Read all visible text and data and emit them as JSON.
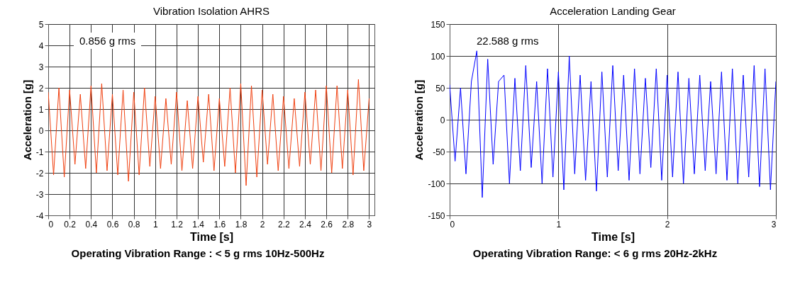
{
  "chart_data": [
    {
      "type": "line",
      "title": "Vibration Isolation  AHRS",
      "xlabel": "Time [s]",
      "ylabel": "Acceleration [g]",
      "annotations": [
        "0.856 g rms",
        "Operating Vibration Range : < 5 g rms  10Hz-500Hz"
      ],
      "x": [
        0,
        0.05,
        0.1,
        0.15,
        0.2,
        0.25,
        0.3,
        0.35,
        0.4,
        0.45,
        0.5,
        0.55,
        0.6,
        0.65,
        0.7,
        0.75,
        0.8,
        0.85,
        0.9,
        0.95,
        1,
        1.05,
        1.1,
        1.15,
        1.2,
        1.25,
        1.3,
        1.35,
        1.4,
        1.45,
        1.5,
        1.55,
        1.6,
        1.65,
        1.7,
        1.75,
        1.8,
        1.85,
        1.9,
        1.95,
        2,
        2.05,
        2.1,
        2.15,
        2.2,
        2.25,
        2.3,
        2.35,
        2.4,
        2.45,
        2.5,
        2.55,
        2.6,
        2.65,
        2.7,
        2.75,
        2.8,
        2.85,
        2.9,
        2.95,
        3
      ],
      "series": [
        {
          "color": "#f04010",
          "values": [
            1.8,
            -2.1,
            2.0,
            -2.2,
            1.9,
            -1.6,
            1.7,
            -1.8,
            2.1,
            -2.0,
            2.2,
            -1.9,
            1.7,
            -2.1,
            1.9,
            -2.4,
            1.8,
            -2.1,
            2.0,
            -1.7,
            1.6,
            -1.8,
            1.5,
            -1.6,
            1.8,
            -1.9,
            1.4,
            -1.8,
            1.6,
            -1.5,
            1.7,
            -1.9,
            1.5,
            -1.7,
            2.0,
            -2.0,
            2.2,
            -2.6,
            2.1,
            -2.2,
            1.9,
            -1.6,
            1.7,
            -1.9,
            1.6,
            -1.8,
            1.5,
            -1.7,
            1.8,
            -1.6,
            1.9,
            -1.9,
            2.1,
            -2.0,
            2.1,
            -1.8,
            1.9,
            -2.1,
            2.4,
            -1.9,
            1.5
          ]
        }
      ],
      "xlim": [
        0,
        3.05
      ],
      "xticks": [
        0,
        0.2,
        0.4,
        0.6,
        0.8,
        1,
        1.2,
        1.4,
        1.6,
        1.8,
        2,
        2.2,
        2.4,
        2.6,
        2.8,
        3
      ],
      "ylim": [
        -4,
        5
      ],
      "yticks": [
        -4,
        -3,
        -2,
        -1,
        0,
        1,
        2,
        3,
        4,
        5
      ],
      "grid": true
    },
    {
      "type": "line",
      "title": "Acceleration Landing Gear",
      "xlabel": "Time [s]",
      "ylabel": "Acceleration [g]",
      "annotations": [
        "22.588 g rms",
        "Operating Vibration Range: < 6 g rms  20Hz-2kHz"
      ],
      "x": [
        0,
        0.05,
        0.1,
        0.15,
        0.2,
        0.25,
        0.3,
        0.35,
        0.4,
        0.45,
        0.5,
        0.55,
        0.6,
        0.65,
        0.7,
        0.75,
        0.8,
        0.85,
        0.9,
        0.95,
        1,
        1.05,
        1.1,
        1.15,
        1.2,
        1.25,
        1.3,
        1.35,
        1.4,
        1.45,
        1.5,
        1.55,
        1.6,
        1.65,
        1.7,
        1.75,
        1.8,
        1.85,
        1.9,
        1.95,
        2,
        2.05,
        2.1,
        2.15,
        2.2,
        2.25,
        2.3,
        2.35,
        2.4,
        2.45,
        2.5,
        2.55,
        2.6,
        2.65,
        2.7,
        2.75,
        2.8,
        2.85,
        2.9,
        2.95,
        3
      ],
      "series": [
        {
          "color": "#0000ff",
          "values": [
            55,
            -65,
            50,
            -85,
            60,
            108,
            -122,
            95,
            -70,
            60,
            70,
            -100,
            65,
            -80,
            85,
            -75,
            60,
            -100,
            80,
            -90,
            75,
            -110,
            100,
            -85,
            70,
            -95,
            60,
            -112,
            75,
            -90,
            85,
            -80,
            70,
            -95,
            80,
            -85,
            65,
            -75,
            80,
            -95,
            70,
            -90,
            75,
            -100,
            65,
            -85,
            70,
            -80,
            60,
            -85,
            75,
            -95,
            80,
            -100,
            70,
            -90,
            85,
            -105,
            80,
            -110,
            60
          ]
        }
      ],
      "xlim": [
        0,
        3
      ],
      "xticks": [
        0,
        1,
        2,
        3
      ],
      "ylim": [
        -150,
        150
      ],
      "yticks": [
        -150,
        -100,
        -50,
        0,
        50,
        100,
        150
      ],
      "grid": true
    }
  ]
}
